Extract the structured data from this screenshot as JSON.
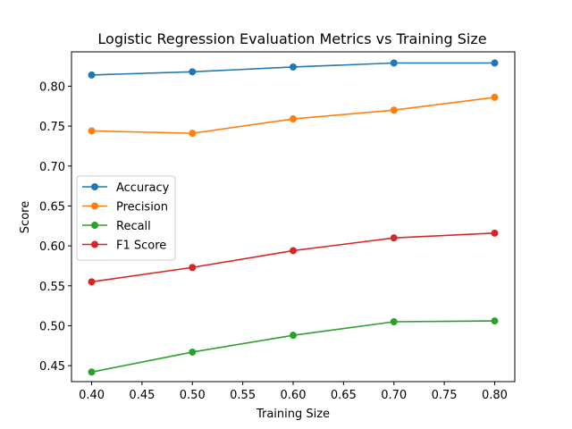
{
  "chart_data": {
    "type": "line",
    "title": "Logistic Regression Evaluation Metrics vs Training Size",
    "xlabel": "Training Size",
    "ylabel": "Score",
    "x": [
      0.4,
      0.5,
      0.6,
      0.7,
      0.8
    ],
    "xlim": [
      0.38,
      0.82
    ],
    "ylim": [
      0.43,
      0.843
    ],
    "xticks": [
      "0.40",
      "0.45",
      "0.50",
      "0.55",
      "0.60",
      "0.65",
      "0.70",
      "0.75",
      "0.80"
    ],
    "yticks": [
      "0.45",
      "0.50",
      "0.55",
      "0.60",
      "0.65",
      "0.70",
      "0.75",
      "0.80"
    ],
    "grid": false,
    "legend_position": "center-left",
    "series": [
      {
        "name": "Accuracy",
        "color": "#1f77b4",
        "values": [
          0.814,
          0.818,
          0.824,
          0.829,
          0.829
        ]
      },
      {
        "name": "Precision",
        "color": "#ff7f0e",
        "values": [
          0.744,
          0.741,
          0.759,
          0.77,
          0.786
        ]
      },
      {
        "name": "Recall",
        "color": "#2ca02c",
        "values": [
          0.442,
          0.467,
          0.488,
          0.505,
          0.506
        ]
      },
      {
        "name": "F1 Score",
        "color": "#d62728",
        "values": [
          0.555,
          0.573,
          0.594,
          0.61,
          0.616
        ]
      }
    ]
  }
}
